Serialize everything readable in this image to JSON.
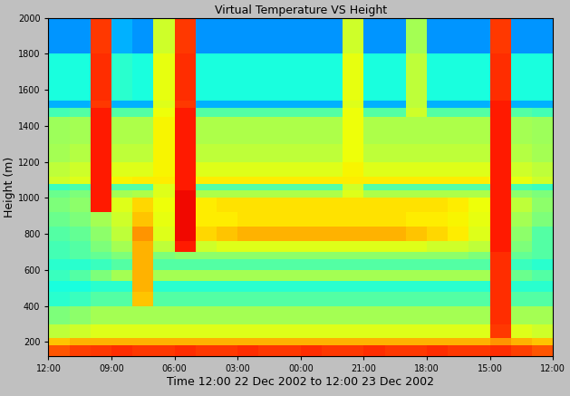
{
  "chart_data": {
    "type": "heatmap",
    "title": "Virtual Temperature VS Height",
    "x_label": "Time 12:00 22 Dec 2002 to 12:00 23 Dec 2002",
    "y_label": "Height (m)",
    "xlim": [
      24,
      0
    ],
    "xticks": [
      {
        "value": 24,
        "label": "12:00"
      },
      {
        "value": 21,
        "label": "09:00"
      },
      {
        "value": 18,
        "label": "06:00"
      },
      {
        "value": 15,
        "label": "03:00"
      },
      {
        "value": 12,
        "label": "00:00"
      },
      {
        "value": 9,
        "label": "21:00"
      },
      {
        "value": 6,
        "label": "18:00"
      },
      {
        "value": 3,
        "label": "15:00"
      },
      {
        "value": 0,
        "label": "12:00"
      }
    ],
    "ylim": [
      120,
      2000
    ],
    "yticks": [
      200,
      400,
      600,
      800,
      1000,
      1200,
      1400,
      1600,
      1800,
      2000
    ],
    "color": "jet",
    "color_range": [
      0,
      1
    ],
    "x_bins": [
      0,
      1,
      2,
      3,
      4,
      5,
      6,
      7,
      8,
      9,
      10,
      11,
      12,
      13,
      14,
      15,
      16,
      17,
      18,
      19,
      20,
      21,
      22,
      23,
      24
    ],
    "y_bins": [
      120,
      180,
      220,
      300,
      400,
      480,
      540,
      600,
      660,
      700,
      760,
      840,
      920,
      1000,
      1040,
      1080,
      1120,
      1200,
      1300,
      1450,
      1500,
      1540,
      1800,
      2000
    ],
    "cells": [
      [
        0.82,
        0.84,
        0.86,
        0.85,
        0.85,
        0.86,
        0.85,
        0.85,
        0.86,
        0.85,
        0.85,
        0.86,
        0.85,
        0.85,
        0.86,
        0.85,
        0.85,
        0.86,
        0.85,
        0.85,
        0.86,
        0.85,
        0.84,
        0.82
      ],
      [
        0.7,
        0.72,
        0.75,
        0.72,
        0.72,
        0.72,
        0.72,
        0.72,
        0.72,
        0.72,
        0.72,
        0.72,
        0.72,
        0.72,
        0.72,
        0.72,
        0.72,
        0.72,
        0.72,
        0.72,
        0.72,
        0.72,
        0.72,
        0.7
      ],
      [
        0.6,
        0.62,
        0.85,
        0.62,
        0.62,
        0.62,
        0.62,
        0.62,
        0.62,
        0.62,
        0.62,
        0.62,
        0.62,
        0.62,
        0.62,
        0.62,
        0.62,
        0.62,
        0.62,
        0.62,
        0.62,
        0.62,
        0.6,
        0.58
      ],
      [
        0.55,
        0.55,
        0.86,
        0.55,
        0.55,
        0.55,
        0.55,
        0.55,
        0.55,
        0.55,
        0.55,
        0.55,
        0.55,
        0.55,
        0.55,
        0.55,
        0.55,
        0.55,
        0.55,
        0.55,
        0.55,
        0.55,
        0.52,
        0.5
      ],
      [
        0.45,
        0.45,
        0.86,
        0.45,
        0.45,
        0.45,
        0.45,
        0.45,
        0.45,
        0.45,
        0.45,
        0.45,
        0.45,
        0.45,
        0.45,
        0.45,
        0.45,
        0.45,
        0.45,
        0.7,
        0.45,
        0.45,
        0.42,
        0.4
      ],
      [
        0.4,
        0.4,
        0.86,
        0.4,
        0.4,
        0.4,
        0.4,
        0.4,
        0.4,
        0.4,
        0.4,
        0.4,
        0.4,
        0.4,
        0.4,
        0.4,
        0.4,
        0.4,
        0.4,
        0.72,
        0.4,
        0.4,
        0.38,
        0.38
      ],
      [
        0.45,
        0.48,
        0.86,
        0.55,
        0.55,
        0.55,
        0.55,
        0.55,
        0.55,
        0.55,
        0.55,
        0.55,
        0.55,
        0.55,
        0.55,
        0.55,
        0.55,
        0.55,
        0.55,
        0.72,
        0.55,
        0.5,
        0.45,
        0.42
      ],
      [
        0.4,
        0.42,
        0.86,
        0.45,
        0.45,
        0.45,
        0.45,
        0.45,
        0.45,
        0.45,
        0.45,
        0.45,
        0.45,
        0.45,
        0.45,
        0.45,
        0.45,
        0.45,
        0.45,
        0.72,
        0.45,
        0.42,
        0.4,
        0.4
      ],
      [
        0.45,
        0.47,
        0.86,
        0.5,
        0.52,
        0.52,
        0.52,
        0.52,
        0.52,
        0.52,
        0.52,
        0.52,
        0.52,
        0.52,
        0.52,
        0.52,
        0.52,
        0.52,
        0.5,
        0.72,
        0.5,
        0.47,
        0.45,
        0.43
      ],
      [
        0.45,
        0.5,
        0.88,
        0.58,
        0.6,
        0.6,
        0.62,
        0.62,
        0.62,
        0.62,
        0.62,
        0.62,
        0.62,
        0.62,
        0.62,
        0.62,
        0.6,
        0.88,
        0.58,
        0.72,
        0.55,
        0.5,
        0.45,
        0.43
      ],
      [
        0.45,
        0.52,
        0.88,
        0.62,
        0.66,
        0.68,
        0.7,
        0.72,
        0.72,
        0.72,
        0.72,
        0.72,
        0.72,
        0.72,
        0.72,
        0.7,
        0.68,
        0.9,
        0.62,
        0.75,
        0.58,
        0.52,
        0.47,
        0.45
      ],
      [
        0.5,
        0.55,
        0.88,
        0.63,
        0.65,
        0.66,
        0.66,
        0.67,
        0.67,
        0.67,
        0.67,
        0.67,
        0.67,
        0.67,
        0.67,
        0.66,
        0.66,
        0.9,
        0.63,
        0.7,
        0.6,
        0.55,
        0.5,
        0.48
      ],
      [
        0.52,
        0.58,
        0.88,
        0.64,
        0.66,
        0.67,
        0.67,
        0.67,
        0.67,
        0.67,
        0.67,
        0.67,
        0.67,
        0.67,
        0.67,
        0.67,
        0.66,
        0.9,
        0.64,
        0.68,
        0.62,
        0.88,
        0.52,
        0.5
      ],
      [
        0.5,
        0.52,
        0.88,
        0.56,
        0.56,
        0.56,
        0.56,
        0.56,
        0.56,
        0.62,
        0.56,
        0.56,
        0.56,
        0.56,
        0.56,
        0.56,
        0.56,
        0.9,
        0.62,
        0.56,
        0.55,
        0.88,
        0.5,
        0.48
      ],
      [
        0.42,
        0.44,
        0.88,
        0.45,
        0.45,
        0.45,
        0.45,
        0.45,
        0.45,
        0.6,
        0.45,
        0.45,
        0.45,
        0.45,
        0.45,
        0.45,
        0.45,
        0.88,
        0.62,
        0.45,
        0.45,
        0.88,
        0.44,
        0.42
      ],
      [
        0.6,
        0.63,
        0.88,
        0.66,
        0.66,
        0.66,
        0.66,
        0.66,
        0.66,
        0.66,
        0.66,
        0.66,
        0.66,
        0.66,
        0.66,
        0.66,
        0.66,
        0.88,
        0.66,
        0.66,
        0.65,
        0.88,
        0.62,
        0.6
      ],
      [
        0.58,
        0.6,
        0.88,
        0.62,
        0.62,
        0.62,
        0.62,
        0.62,
        0.62,
        0.65,
        0.62,
        0.62,
        0.62,
        0.62,
        0.62,
        0.62,
        0.62,
        0.88,
        0.65,
        0.62,
        0.62,
        0.88,
        0.6,
        0.58
      ],
      [
        0.55,
        0.57,
        0.88,
        0.58,
        0.58,
        0.58,
        0.58,
        0.58,
        0.58,
        0.64,
        0.58,
        0.58,
        0.58,
        0.58,
        0.58,
        0.58,
        0.58,
        0.88,
        0.65,
        0.58,
        0.58,
        0.88,
        0.57,
        0.55
      ],
      [
        0.54,
        0.55,
        0.88,
        0.56,
        0.56,
        0.56,
        0.56,
        0.56,
        0.56,
        0.64,
        0.56,
        0.56,
        0.56,
        0.56,
        0.56,
        0.56,
        0.56,
        0.88,
        0.65,
        0.56,
        0.56,
        0.88,
        0.55,
        0.54
      ],
      [
        0.43,
        0.45,
        0.88,
        0.45,
        0.45,
        0.45,
        0.6,
        0.45,
        0.45,
        0.64,
        0.45,
        0.45,
        0.45,
        0.45,
        0.45,
        0.45,
        0.45,
        0.88,
        0.64,
        0.45,
        0.45,
        0.88,
        0.45,
        0.43
      ],
      [
        0.3,
        0.3,
        0.88,
        0.3,
        0.3,
        0.3,
        0.58,
        0.3,
        0.3,
        0.62,
        0.3,
        0.3,
        0.3,
        0.3,
        0.3,
        0.3,
        0.3,
        0.85,
        0.62,
        0.3,
        0.3,
        0.85,
        0.3,
        0.3
      ],
      [
        0.38,
        0.38,
        0.86,
        0.38,
        0.38,
        0.38,
        0.58,
        0.38,
        0.38,
        0.63,
        0.38,
        0.38,
        0.38,
        0.38,
        0.38,
        0.38,
        0.38,
        0.86,
        0.63,
        0.38,
        0.4,
        0.86,
        0.38,
        0.38
      ],
      [
        0.27,
        0.27,
        0.85,
        0.27,
        0.27,
        0.27,
        0.55,
        0.27,
        0.27,
        0.6,
        0.27,
        0.27,
        0.27,
        0.27,
        0.27,
        0.27,
        0.27,
        0.85,
        0.6,
        0.27,
        0.3,
        0.85,
        0.27,
        0.27
      ]
    ]
  }
}
